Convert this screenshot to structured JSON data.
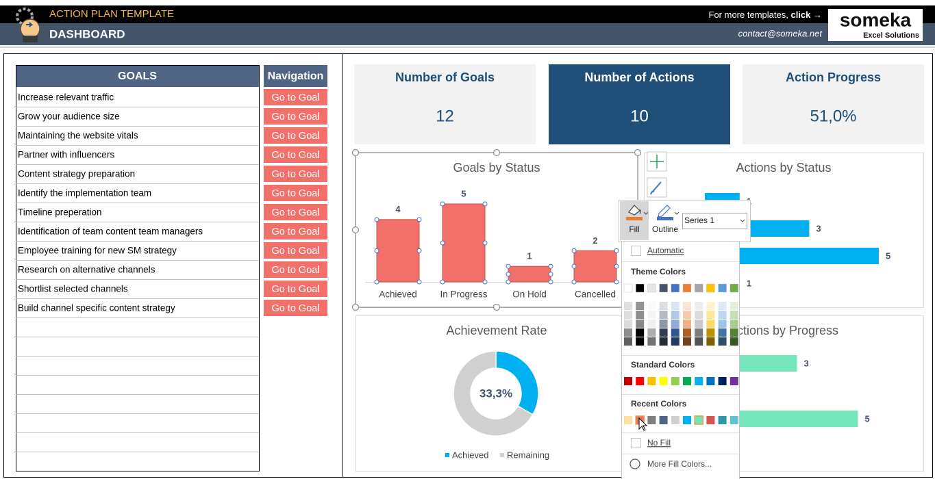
{
  "header": {
    "title": "ACTION PLAN TEMPLATE",
    "subtitle": "DASHBOARD",
    "more_templates": "For more templates,",
    "click": "click →",
    "contact": "contact@someka.net",
    "logo": "someka",
    "logo_tagline": "Excel Solutions"
  },
  "goals_table": {
    "header": "GOALS",
    "nav_header": "Navigation",
    "button_label": "Go to Goal",
    "goals": [
      "Increase relevant traffic",
      "Grow your audience size",
      "Maintaining the website vitals",
      "Partner with influencers",
      "Content strategy preparation",
      "Identify the implementation team",
      "Timeline preperation",
      "Identification of team content team managers",
      "Employee training for new SM strategy",
      "Research on alternative channels",
      "Shortlist selected channels",
      "Build channel specific content strategy"
    ]
  },
  "kpis": [
    {
      "label": "Number of Goals",
      "value": 12
    },
    {
      "label": "Number of Actions",
      "value": 10
    },
    {
      "label": "Action Progress",
      "value": "51,0%"
    }
  ],
  "chart_data": [
    {
      "type": "bar",
      "title": "Goals by Status",
      "categories": [
        "Achieved",
        "In Progress",
        "On Hold",
        "Cancelled"
      ],
      "values": [
        4,
        5,
        1,
        2
      ],
      "color": "#f1706a"
    },
    {
      "type": "hbar",
      "title": "Actions by Status",
      "categories": [
        null,
        null,
        null,
        null
      ],
      "values": [
        1,
        3,
        5,
        1
      ],
      "color": "#00b0f0"
    },
    {
      "type": "donut",
      "title": "Achievement Rate",
      "categories": [
        "Achieved",
        "Remaining"
      ],
      "values": [
        33.3,
        66.7
      ],
      "colors": [
        "#00b0f0",
        "#d0d0d0"
      ],
      "center_label": "33,3%"
    },
    {
      "type": "hbar",
      "title": "Actions by Progress",
      "categories": [
        null,
        null
      ],
      "values": [
        3,
        5
      ],
      "color": "#75e6bb"
    }
  ],
  "format_menu": {
    "fill": "Fill",
    "outline": "Outline",
    "series": "Series 1",
    "automatic": "Automatic",
    "theme_colors": "Theme Colors",
    "standard_colors": "Standard Colors",
    "recent_colors": "Recent Colors",
    "no_fill": "No Fill",
    "more_colors": "More Fill Colors..."
  }
}
